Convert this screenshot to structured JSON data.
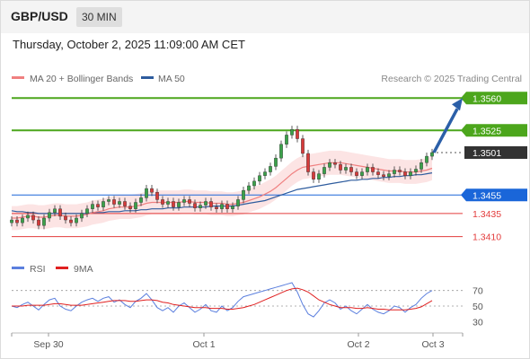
{
  "header": {
    "symbol": "GBP/USD",
    "timeframe": "30 MIN",
    "datetime": "Thursday, October 2, 2025 11:09:00 AM CET"
  },
  "legend": {
    "ma20_label": "MA 20 + Bollinger Bands",
    "ma20_color": "#f08080",
    "ma50_label": "MA 50",
    "ma50_color": "#2e5c9e",
    "credit": "Research © 2025 Trading Central"
  },
  "rsi_legend": {
    "rsi_label": "RSI",
    "rsi_color": "#5b7fde",
    "ma_label": "9MA",
    "ma_color": "#e02020"
  },
  "chart_data": [
    {
      "type": "candlestick",
      "title": "GBP/USD",
      "ylim": [
        1.3395,
        1.357
      ],
      "x_ticks": [
        "Sep 30",
        "Oct 1",
        "Oct 2",
        "Oct 3"
      ],
      "key_levels": [
        {
          "value": 1.356,
          "label": "1.3560",
          "color": "#4ca61c",
          "type": "resistance"
        },
        {
          "value": 1.3525,
          "label": "1.3525",
          "color": "#4ca61c",
          "type": "resistance"
        },
        {
          "value": 1.3501,
          "label": "1.3501",
          "color": "#333333",
          "type": "last"
        },
        {
          "value": 1.3455,
          "label": "1.3455",
          "color": "#1a66d9",
          "type": "pivot"
        },
        {
          "value": 1.3435,
          "label": "1.3435",
          "color": "#e33b3b",
          "type": "support"
        },
        {
          "value": 1.341,
          "label": "1.3410",
          "color": "#e33b3b",
          "type": "support"
        }
      ],
      "projection": {
        "from": 1.3501,
        "to": 1.356
      },
      "close_series": [
        1.3428,
        1.3425,
        1.343,
        1.3433,
        1.3428,
        1.3422,
        1.343,
        1.3436,
        1.344,
        1.3432,
        1.3428,
        1.3425,
        1.343,
        1.3435,
        1.344,
        1.3445,
        1.3442,
        1.3448,
        1.345,
        1.3445,
        1.3448,
        1.3443,
        1.344,
        1.3447,
        1.3452,
        1.3462,
        1.3458,
        1.345,
        1.3445,
        1.3448,
        1.3442,
        1.3447,
        1.345,
        1.3446,
        1.3441,
        1.3444,
        1.3448,
        1.3442,
        1.344,
        1.3445,
        1.344,
        1.3443,
        1.345,
        1.346,
        1.3465,
        1.347,
        1.3476,
        1.348,
        1.3486,
        1.3495,
        1.351,
        1.352,
        1.3526,
        1.3516,
        1.35,
        1.348,
        1.3472,
        1.3478,
        1.3485,
        1.349,
        1.3488,
        1.3482,
        1.3485,
        1.348,
        1.3476,
        1.348,
        1.3485,
        1.348,
        1.3477,
        1.3475,
        1.3478,
        1.3482,
        1.348,
        1.3476,
        1.348,
        1.3483,
        1.349,
        1.3497,
        1.3501
      ],
      "ma20": [
        1.343,
        1.343,
        1.3431,
        1.3432,
        1.3432,
        1.3431,
        1.3431,
        1.3432,
        1.3433,
        1.3433,
        1.3432,
        1.3432,
        1.3432,
        1.3433,
        1.3434,
        1.3436,
        1.3437,
        1.3438,
        1.344,
        1.3441,
        1.3442,
        1.3442,
        1.3442,
        1.3443,
        1.3444,
        1.3446,
        1.3447,
        1.3447,
        1.3447,
        1.3447,
        1.3447,
        1.3447,
        1.3448,
        1.3448,
        1.3447,
        1.3447,
        1.3447,
        1.3446,
        1.3446,
        1.3446,
        1.3445,
        1.3445,
        1.3446,
        1.3447,
        1.3449,
        1.3451,
        1.3453,
        1.3456,
        1.3459,
        1.3463,
        1.3468,
        1.3473,
        1.3478,
        1.3482,
        1.3485,
        1.3486,
        1.3487,
        1.3488,
        1.3489,
        1.349,
        1.349,
        1.349,
        1.3489,
        1.3488,
        1.3487,
        1.3486,
        1.3485,
        1.3484,
        1.3483,
        1.3482,
        1.3481,
        1.3481,
        1.3481,
        1.348,
        1.348,
        1.348,
        1.3481,
        1.3482,
        1.3484
      ],
      "ma50": [
        1.3438,
        1.3437,
        1.3437,
        1.3436,
        1.3436,
        1.3435,
        1.3435,
        1.3435,
        1.3435,
        1.3435,
        1.3435,
        1.3435,
        1.3435,
        1.3435,
        1.3435,
        1.3436,
        1.3436,
        1.3436,
        1.3437,
        1.3437,
        1.3437,
        1.3438,
        1.3438,
        1.3438,
        1.3439,
        1.3439,
        1.344,
        1.344,
        1.344,
        1.3441,
        1.3441,
        1.3441,
        1.3442,
        1.3442,
        1.3442,
        1.3442,
        1.3442,
        1.3443,
        1.3443,
        1.3443,
        1.3443,
        1.3443,
        1.3444,
        1.3445,
        1.3446,
        1.3447,
        1.3448,
        1.3449,
        1.3451,
        1.3453,
        1.3455,
        1.3457,
        1.3459,
        1.3461,
        1.3462,
        1.3463,
        1.3464,
        1.3465,
        1.3466,
        1.3467,
        1.3468,
        1.3469,
        1.347,
        1.3471,
        1.3471,
        1.3472,
        1.3472,
        1.3473,
        1.3473,
        1.3474,
        1.3474,
        1.3475,
        1.3475,
        1.3476,
        1.3476,
        1.3477,
        1.3477,
        1.3478,
        1.3479
      ],
      "bb_width": 0.0013
    },
    {
      "type": "line",
      "title": "RSI",
      "ylim": [
        20,
        80
      ],
      "y_ticks": [
        "70",
        "50",
        "30"
      ],
      "rsi": [
        50,
        48,
        52,
        55,
        50,
        45,
        52,
        58,
        60,
        50,
        46,
        44,
        50,
        55,
        58,
        60,
        56,
        60,
        62,
        55,
        58,
        52,
        48,
        56,
        60,
        66,
        58,
        48,
        44,
        48,
        42,
        50,
        54,
        48,
        42,
        46,
        52,
        44,
        42,
        50,
        44,
        48,
        56,
        62,
        64,
        66,
        68,
        70,
        72,
        74,
        76,
        78,
        80,
        68,
        52,
        40,
        36,
        44,
        54,
        58,
        54,
        46,
        50,
        44,
        40,
        46,
        52,
        46,
        42,
        40,
        44,
        50,
        48,
        42,
        48,
        52,
        60,
        66,
        70
      ],
      "rsi_ma": [
        50,
        50,
        50,
        51,
        51,
        51,
        51,
        52,
        53,
        53,
        52,
        51,
        51,
        51,
        52,
        53,
        54,
        55,
        56,
        57,
        57,
        57,
        56,
        56,
        57,
        58,
        58,
        57,
        55,
        54,
        52,
        51,
        50,
        49,
        48,
        48,
        48,
        47,
        47,
        47,
        46,
        46,
        47,
        48,
        50,
        52,
        55,
        58,
        61,
        64,
        67,
        70,
        72,
        73,
        71,
        68,
        63,
        58,
        55,
        52,
        50,
        48,
        48,
        48,
        47,
        47,
        48,
        47,
        46,
        46,
        45,
        45,
        45,
        45,
        46,
        47,
        49,
        53,
        57
      ]
    }
  ]
}
